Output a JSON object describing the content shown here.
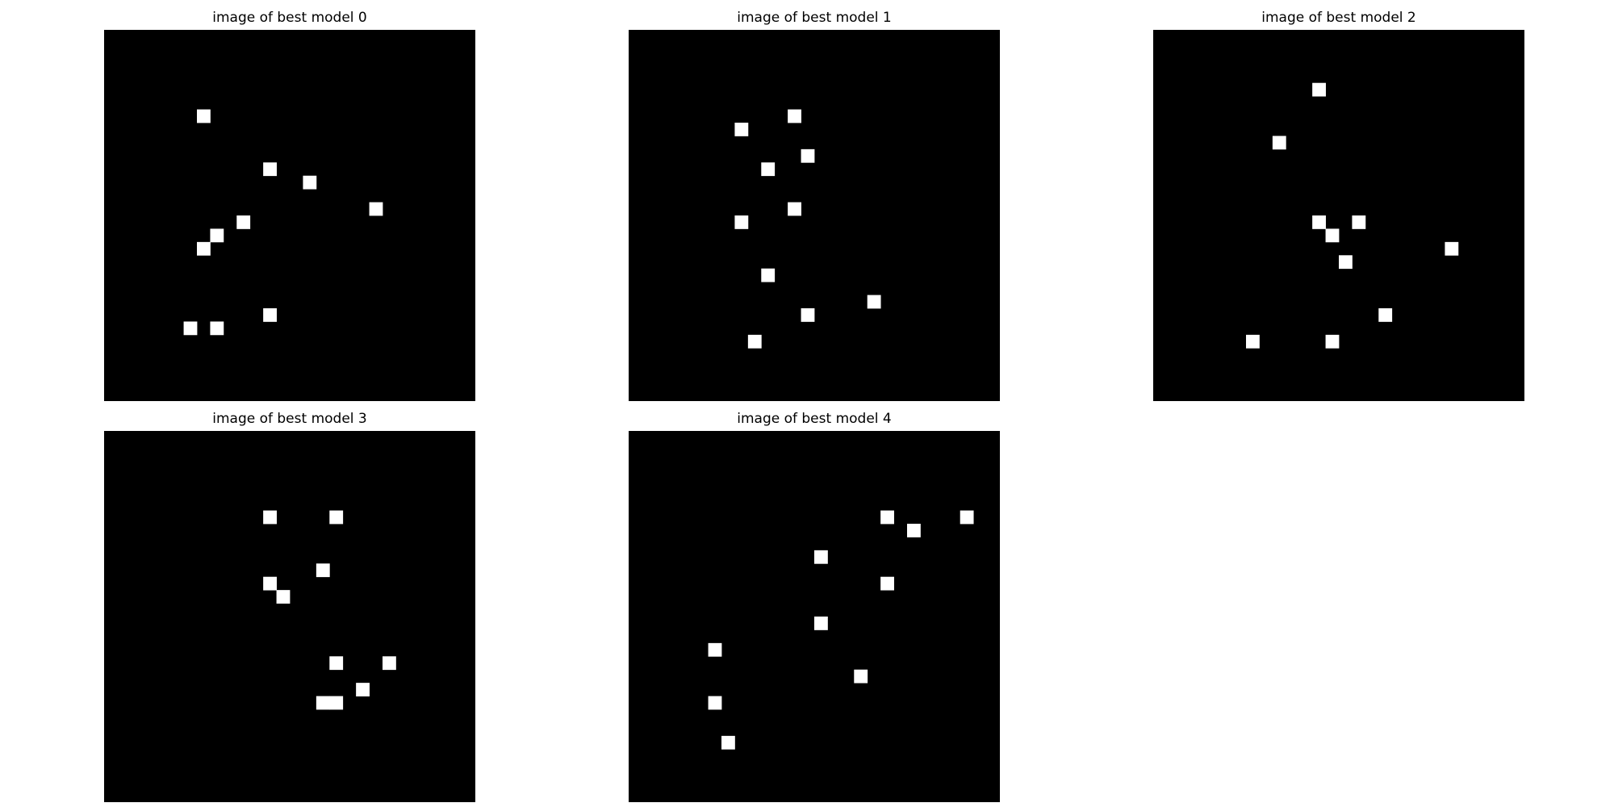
{
  "colors": {
    "background": "#000000",
    "pixel": "#ffffff"
  },
  "chart_data": [
    {
      "type": "heatmap",
      "title": "image of best model 0",
      "grid_size": 28,
      "grid": false,
      "points": [
        [
          7,
          6
        ],
        [
          12,
          10
        ],
        [
          15,
          11
        ],
        [
          20,
          13
        ],
        [
          10,
          14
        ],
        [
          8,
          15
        ],
        [
          7,
          16
        ],
        [
          12,
          21
        ],
        [
          6,
          22
        ],
        [
          8,
          22
        ]
      ]
    },
    {
      "type": "heatmap",
      "title": "image of best model 1",
      "grid_size": 28,
      "grid": false,
      "points": [
        [
          12,
          6
        ],
        [
          8,
          7
        ],
        [
          13,
          9
        ],
        [
          10,
          10
        ],
        [
          8,
          14
        ],
        [
          12,
          13
        ],
        [
          10,
          18
        ],
        [
          18,
          20
        ],
        [
          13,
          21
        ],
        [
          9,
          23
        ]
      ]
    },
    {
      "type": "heatmap",
      "title": "image of best model 2",
      "grid_size": 28,
      "grid": false,
      "points": [
        [
          12,
          4
        ],
        [
          9,
          8
        ],
        [
          12,
          14
        ],
        [
          15,
          14
        ],
        [
          13,
          15
        ],
        [
          22,
          16
        ],
        [
          14,
          17
        ],
        [
          17,
          21
        ],
        [
          7,
          23
        ],
        [
          13,
          23
        ]
      ]
    },
    {
      "type": "heatmap",
      "title": "image of best model 3",
      "grid_size": 28,
      "grid": false,
      "points": [
        [
          12,
          6
        ],
        [
          17,
          6
        ],
        [
          16,
          10
        ],
        [
          12,
          11
        ],
        [
          13,
          12
        ],
        [
          17,
          17
        ],
        [
          21,
          17
        ],
        [
          19,
          19
        ],
        [
          16,
          20
        ],
        [
          17,
          20
        ]
      ]
    },
    {
      "type": "heatmap",
      "title": "image of best model 4",
      "grid_size": 28,
      "grid": false,
      "points": [
        [
          19,
          6
        ],
        [
          25,
          6
        ],
        [
          21,
          7
        ],
        [
          14,
          9
        ],
        [
          19,
          11
        ],
        [
          14,
          14
        ],
        [
          6,
          16
        ],
        [
          17,
          18
        ],
        [
          6,
          20
        ],
        [
          7,
          23
        ]
      ]
    }
  ]
}
